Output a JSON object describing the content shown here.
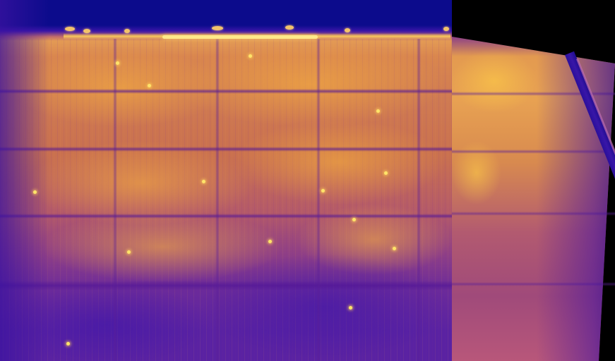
{
  "image": {
    "kind": "thermal-camera-mosaic",
    "palette": {
      "cold": "#0c0b8c",
      "cool": "#5a22a2",
      "mid": "#b45a69",
      "warm": "#e39a55",
      "hot": "#ffe46a",
      "background": "#000000"
    },
    "frames": [
      {
        "name": "main-frame",
        "subject": "solar-panel-array"
      },
      {
        "name": "stitched-frame",
        "subject": "solar-panel-array"
      }
    ]
  }
}
